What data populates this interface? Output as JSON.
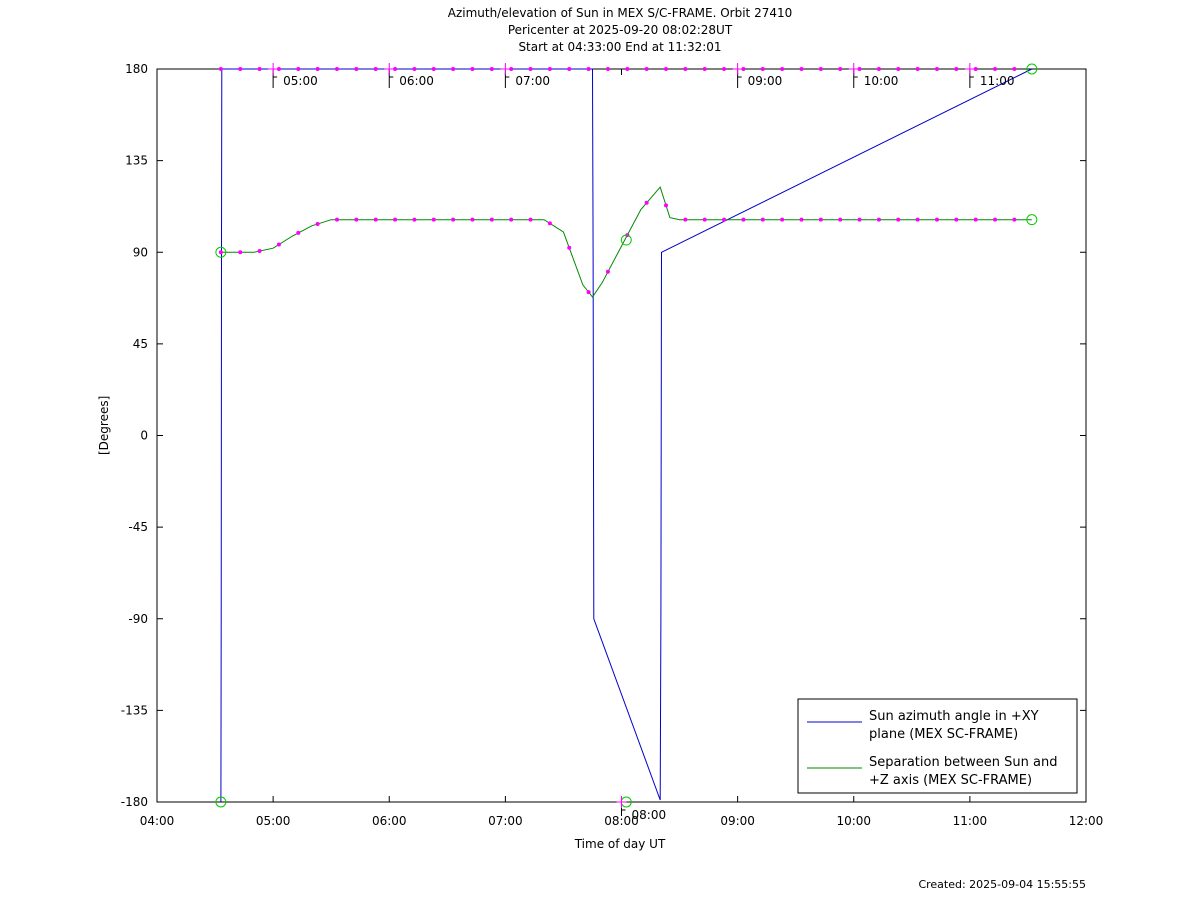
{
  "header": {
    "title": "Azimuth/elevation of Sun in MEX S/C-FRAME.  Orbit 27410",
    "pericenter": "Pericenter at 2025-09-20 08:02:28UT",
    "span": "Start at 04:33:00 End at 11:32:01"
  },
  "footer": {
    "created": "Created: 2025-09-04 15:55:55"
  },
  "chart_data": {
    "type": "line",
    "title": "Azimuth/elevation of Sun in MEX S/C-FRAME.  Orbit 27410",
    "xlabel": "Time of day UT",
    "ylabel": "[Degrees]",
    "xlim": [
      "04:00",
      "12:00"
    ],
    "ylim": [
      -180,
      180
    ],
    "xticks": [
      "04:00",
      "05:00",
      "06:00",
      "07:00",
      "08:00",
      "09:00",
      "10:00",
      "11:00",
      "12:00"
    ],
    "yticks": [
      180,
      135,
      90,
      45,
      0,
      -45,
      -90,
      -135,
      -180
    ],
    "grid": false,
    "legend_position": "bottom-right",
    "colors": {
      "azimuth": "#0000cc",
      "separation": "#008800",
      "markers": "#ff00ff",
      "circles": "#00cc00"
    },
    "series": [
      {
        "name": "Sun azimuth angle in +XY plane (MEX SC-FRAME)",
        "legend_lines": [
          "Sun azimuth angle in +XY",
          "plane (MEX SC-FRAME)"
        ],
        "x": [
          "04:33:00",
          "04:33:10",
          "04:33:20",
          "04:33:30",
          "07:45:00",
          "07:45:20",
          "07:45:40",
          "08:20:00",
          "08:20:20",
          "08:20:40",
          "11:32:01"
        ],
        "y": [
          -180,
          -90,
          90,
          180,
          180,
          90,
          -90,
          -179,
          -90,
          90,
          180
        ]
      },
      {
        "name": "Separation between Sun and +Z axis (MEX SC-FRAME)",
        "legend_lines": [
          "Separation between Sun and",
          "+Z axis (MEX SC-FRAME)"
        ],
        "x": [
          "04:33:00",
          "04:50:00",
          "05:00:00",
          "05:10:00",
          "05:20:00",
          "05:30:00",
          "06:00:00",
          "07:00:00",
          "07:20:00",
          "07:30:00",
          "07:40:00",
          "07:45:00",
          "07:50:00",
          "08:00:00",
          "08:10:00",
          "08:20:00",
          "08:25:00",
          "08:30:00",
          "09:00:00",
          "10:00:00",
          "11:00:00",
          "11:32:01"
        ],
        "y": [
          90,
          90,
          92,
          98,
          103,
          106,
          106,
          106,
          106,
          100,
          74,
          68,
          75,
          93,
          111,
          122,
          107,
          106,
          106,
          106,
          106,
          106
        ]
      }
    ],
    "annotations": [
      {
        "text": "05:00",
        "x": "05:00",
        "y": 180
      },
      {
        "text": "06:00",
        "x": "06:00",
        "y": 180
      },
      {
        "text": "07:00",
        "x": "07:00",
        "y": 180
      },
      {
        "text": "08:00",
        "x": "08:00",
        "y": -180
      },
      {
        "text": "09:00",
        "x": "09:00",
        "y": 180
      },
      {
        "text": "10:00",
        "x": "10:00",
        "y": 180
      },
      {
        "text": "11:00",
        "x": "11:00",
        "y": 180
      }
    ]
  }
}
